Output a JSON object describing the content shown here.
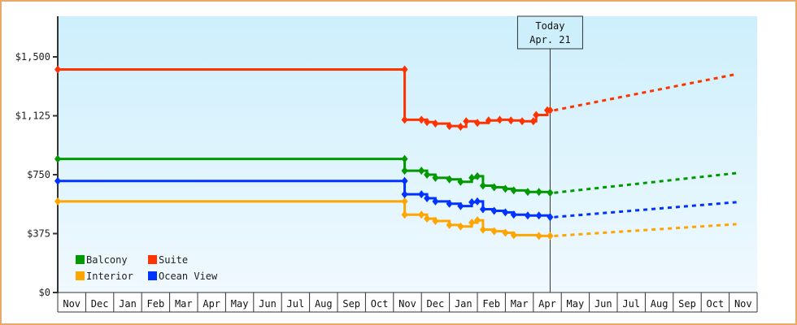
{
  "chart_data": {
    "type": "line",
    "title": "",
    "xlabel": "",
    "ylabel": "",
    "ylim": [
      0,
      1750
    ],
    "y_ticks": [
      "$0",
      "$375",
      "$750",
      "$1,125",
      "$1,500"
    ],
    "y_tick_values": [
      0,
      375,
      750,
      1125,
      1500
    ],
    "x_tick_labels": [
      "Nov",
      "Dec",
      "Jan",
      "Feb",
      "Mar",
      "Apr",
      "May",
      "Jun",
      "Jul",
      "Aug",
      "Sep",
      "Oct",
      "Nov",
      "Dec",
      "Jan",
      "Feb",
      "Mar",
      "Apr",
      "May",
      "Jun",
      "Jul",
      "Aug",
      "Sep",
      "Oct",
      "Nov"
    ],
    "today_marker": {
      "line1": "Today",
      "line2": "Apr. 21",
      "month_index": 17.6
    },
    "legend": [
      {
        "name": "Balcony",
        "color": "#009900"
      },
      {
        "name": "Suite",
        "color": "#ff3300"
      },
      {
        "name": "Interior",
        "color": "#ffa500"
      },
      {
        "name": "Ocean View",
        "color": "#0033ff"
      }
    ],
    "series": [
      {
        "name": "Suite",
        "color": "#ff3300",
        "points": [
          [
            0,
            1420
          ],
          [
            12.4,
            1420
          ],
          [
            12.4,
            1100
          ],
          [
            13.0,
            1100
          ],
          [
            13.2,
            1085
          ],
          [
            13.5,
            1075
          ],
          [
            14.0,
            1060
          ],
          [
            14.4,
            1055
          ],
          [
            14.6,
            1090
          ],
          [
            15.0,
            1080
          ],
          [
            15.4,
            1095
          ],
          [
            15.8,
            1100
          ],
          [
            16.2,
            1095
          ],
          [
            16.6,
            1090
          ],
          [
            17.0,
            1090
          ],
          [
            17.1,
            1130
          ],
          [
            17.5,
            1160
          ],
          [
            17.6,
            1160
          ]
        ],
        "forecast": [
          [
            17.6,
            1160
          ],
          [
            24.0,
            1390
          ]
        ]
      },
      {
        "name": "Balcony",
        "color": "#009900",
        "points": [
          [
            0,
            850
          ],
          [
            12.4,
            850
          ],
          [
            12.4,
            775
          ],
          [
            13.0,
            775
          ],
          [
            13.2,
            750
          ],
          [
            13.5,
            730
          ],
          [
            14.0,
            720
          ],
          [
            14.4,
            705
          ],
          [
            14.8,
            730
          ],
          [
            15.0,
            740
          ],
          [
            15.2,
            680
          ],
          [
            15.6,
            670
          ],
          [
            16.0,
            660
          ],
          [
            16.3,
            650
          ],
          [
            16.8,
            640
          ],
          [
            17.2,
            640
          ],
          [
            17.6,
            635
          ]
        ],
        "forecast": [
          [
            17.6,
            635
          ],
          [
            24.0,
            760
          ]
        ]
      },
      {
        "name": "Ocean View",
        "color": "#0033ff",
        "points": [
          [
            0,
            710
          ],
          [
            12.4,
            710
          ],
          [
            12.4,
            625
          ],
          [
            13.0,
            625
          ],
          [
            13.2,
            600
          ],
          [
            13.5,
            580
          ],
          [
            14.0,
            565
          ],
          [
            14.4,
            550
          ],
          [
            14.8,
            575
          ],
          [
            15.0,
            580
          ],
          [
            15.2,
            530
          ],
          [
            15.6,
            520
          ],
          [
            16.0,
            510
          ],
          [
            16.3,
            495
          ],
          [
            16.8,
            490
          ],
          [
            17.2,
            490
          ],
          [
            17.6,
            480
          ]
        ],
        "forecast": [
          [
            17.6,
            480
          ],
          [
            24.0,
            575
          ]
        ]
      },
      {
        "name": "Interior",
        "color": "#ffa500",
        "points": [
          [
            0,
            580
          ],
          [
            12.4,
            580
          ],
          [
            12.4,
            495
          ],
          [
            13.0,
            495
          ],
          [
            13.2,
            470
          ],
          [
            13.5,
            455
          ],
          [
            14.0,
            430
          ],
          [
            14.4,
            420
          ],
          [
            14.8,
            445
          ],
          [
            15.0,
            460
          ],
          [
            15.2,
            400
          ],
          [
            15.6,
            390
          ],
          [
            16.0,
            380
          ],
          [
            16.3,
            365
          ],
          [
            17.2,
            360
          ],
          [
            17.6,
            360
          ]
        ],
        "forecast": [
          [
            17.6,
            360
          ],
          [
            24.0,
            435
          ]
        ]
      }
    ]
  }
}
